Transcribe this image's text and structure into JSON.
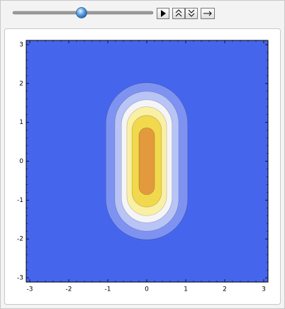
{
  "chart_data": {
    "type": "contour",
    "xlim": [
      -3,
      3
    ],
    "ylim": [
      -3,
      3
    ],
    "xticks": [
      -3,
      -2,
      -1,
      0,
      1,
      2,
      3
    ],
    "yticks": [
      -3,
      -2,
      -1,
      0,
      1,
      2,
      3
    ],
    "background": "#4566ec",
    "regions": [
      {
        "color": "#7e93f1",
        "half_width": 1.05,
        "half_height": 2.02
      },
      {
        "color": "#b8c3f6",
        "half_width": 0.82,
        "half_height": 1.8
      },
      {
        "color": "#f5f5f7",
        "half_width": 0.65,
        "half_height": 1.58
      },
      {
        "color": "#faf0a4",
        "half_width": 0.51,
        "half_height": 1.4
      },
      {
        "color": "#f1d84c",
        "half_width": 0.38,
        "half_height": 1.18
      },
      {
        "color": "#e39a3c",
        "half_width": 0.2,
        "half_height": 0.86
      }
    ]
  }
}
